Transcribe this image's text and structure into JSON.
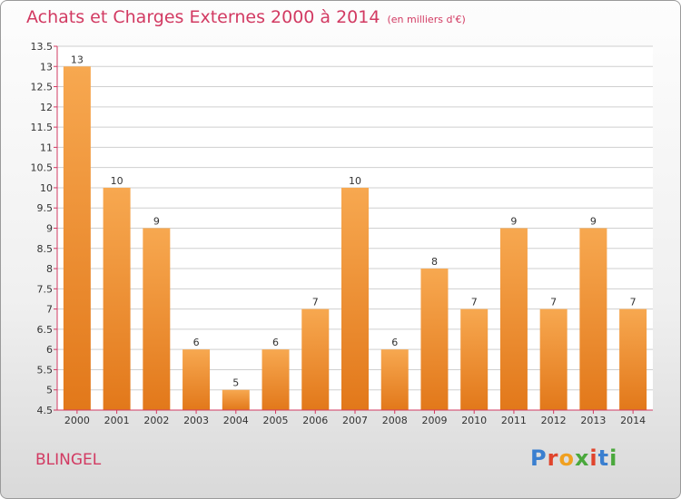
{
  "header": {
    "title": "Achats et Charges Externes 2000 à 2014",
    "unit": "(en milliers d'€)"
  },
  "footer": {
    "commune": "BLINGEL",
    "logo_text": "Proxiti",
    "logo_colors": [
      "#3a7fd0",
      "#e0442c",
      "#f0a020",
      "#4aa83c",
      "#e0442c",
      "#3a7fd0",
      "#4aa83c"
    ]
  },
  "chart_data": {
    "type": "bar",
    "title": "Achats et Charges Externes 2000 à 2014",
    "subtitle": "(en milliers d'€)",
    "categories": [
      "2000",
      "2001",
      "2002",
      "2003",
      "2004",
      "2005",
      "2006",
      "2007",
      "2008",
      "2009",
      "2010",
      "2011",
      "2012",
      "2013",
      "2014"
    ],
    "values": [
      13,
      10,
      9,
      6,
      5,
      6,
      7,
      10,
      6,
      8,
      7,
      9,
      7,
      9,
      7
    ],
    "ylim": [
      4.5,
      13.5
    ],
    "yticks": [
      "4.5",
      "5",
      "5.5",
      "6",
      "6.5",
      "7",
      "7.5",
      "8",
      "8.5",
      "9",
      "9.5",
      "10",
      "10.5",
      "11",
      "11.5",
      "12",
      "12.5",
      "13",
      "13.5"
    ],
    "grid": true,
    "colors": {
      "bar_top": "#f7a850",
      "bar_bottom": "#e2781a",
      "axis": "#d23a62",
      "grid": "#cfcfcf",
      "text": "#333333"
    }
  }
}
